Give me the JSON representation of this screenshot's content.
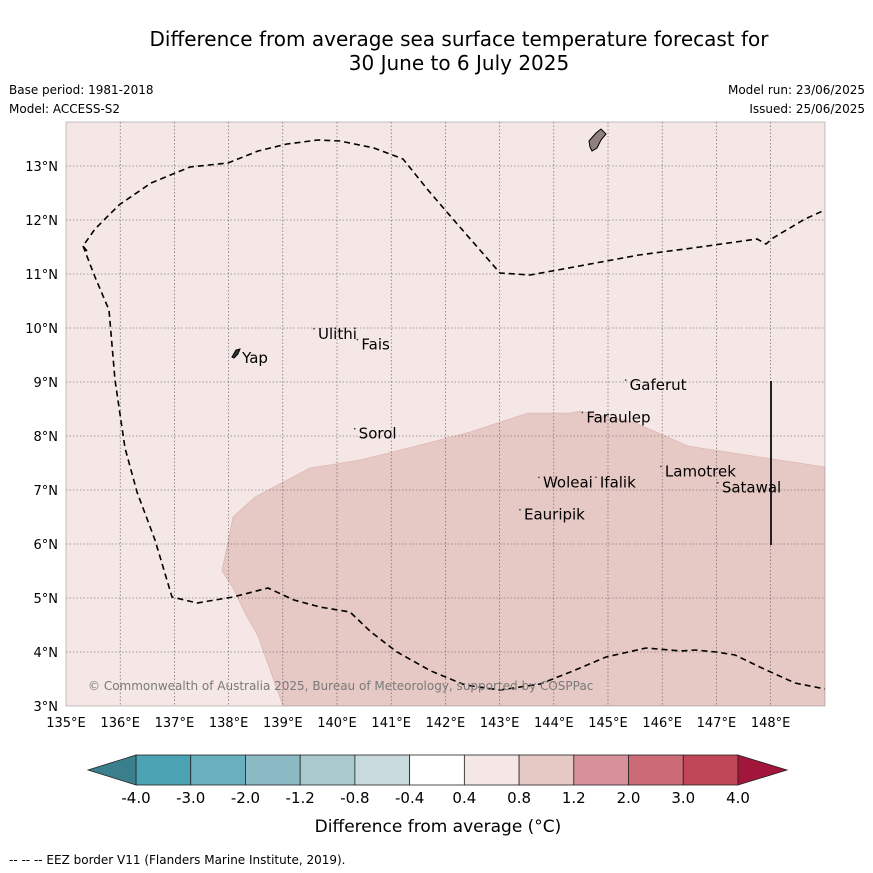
{
  "header": {
    "title_line1": "Difference from average sea surface temperature forecast for",
    "title_line2": "30 June to 6 July 2025",
    "base_period": "Base period: 1981-2018",
    "model": "Model: ACCESS-S2",
    "model_run": "Model run: 23/06/2025",
    "issued": "Issued: 25/06/2025"
  },
  "map": {
    "lon_range": [
      135,
      149
    ],
    "lat_range": [
      3,
      13.8
    ],
    "lon_ticks": [
      "135°E",
      "136°E",
      "137°E",
      "138°E",
      "139°E",
      "140°E",
      "141°E",
      "142°E",
      "143°E",
      "144°E",
      "145°E",
      "146°E",
      "147°E",
      "148°E"
    ],
    "lat_ticks": [
      "3°N",
      "4°N",
      "5°N",
      "6°N",
      "7°N",
      "8°N",
      "9°N",
      "10°N",
      "11°N",
      "12°N",
      "13°N"
    ],
    "places": [
      {
        "name": "Yap",
        "lon": 138.25,
        "lat": 9.35
      },
      {
        "name": "Ulithi",
        "lon": 139.65,
        "lat": 9.8
      },
      {
        "name": "Fais",
        "lon": 140.45,
        "lat": 9.6
      },
      {
        "name": "Gaferut",
        "lon": 145.4,
        "lat": 8.85
      },
      {
        "name": "Faraulep",
        "lon": 144.6,
        "lat": 8.25
      },
      {
        "name": "Sorol",
        "lon": 140.4,
        "lat": 7.95
      },
      {
        "name": "Woleai",
        "lon": 143.8,
        "lat": 7.05
      },
      {
        "name": "Ifalik",
        "lon": 144.85,
        "lat": 7.05
      },
      {
        "name": "Lamotrek",
        "lon": 146.05,
        "lat": 7.25
      },
      {
        "name": "Satawal",
        "lon": 147.1,
        "lat": 6.95
      },
      {
        "name": "Eauripik",
        "lon": 143.45,
        "lat": 6.45
      }
    ],
    "copyright": "© Commonwealth of Australia 2025, Bureau of Meteorology, supported by COSPPac",
    "colors": {
      "background": "#f4e7e5",
      "warm_region": "#e6c8c4",
      "grid": "#555555"
    },
    "field_levels": {
      "background_anomaly": "0.4 to 0.8",
      "warm_region_anomaly": "0.8 to 1.2"
    }
  },
  "colorbar": {
    "labels": [
      "-4.0",
      "-3.0",
      "-2.0",
      "-1.2",
      "-0.8",
      "-0.4",
      "0.4",
      "0.8",
      "1.2",
      "2.0",
      "3.0",
      "4.0"
    ],
    "colors": [
      "#3b7f8c",
      "#4ba2b3",
      "#6aafbd",
      "#8bb9c4",
      "#aac9cf",
      "#c9dadd",
      "#ffffff",
      "#f4e7e5",
      "#e6c8c4",
      "#d8919a",
      "#cc6a76",
      "#be4657",
      "#a3163b"
    ],
    "title": "Difference from average (°C)"
  },
  "footer": {
    "eez_note": "--  --  -- EEZ border V11 (Flanders Marine Institute, 2019)."
  }
}
